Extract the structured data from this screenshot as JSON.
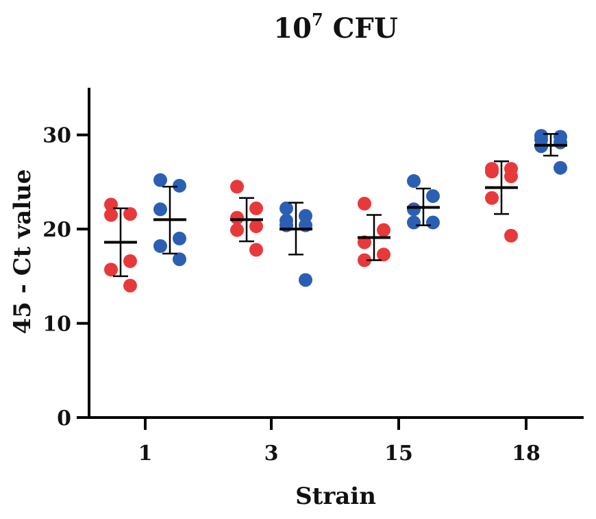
{
  "chart_data": {
    "type": "scatter",
    "title": {
      "base": "10",
      "superscript": "7",
      "suffix": " CFU"
    },
    "xlabel": "Strain",
    "ylabel": "45 - Ct value",
    "ylim": [
      0,
      35
    ],
    "yticks": [
      0,
      10,
      20,
      30
    ],
    "categories": [
      "1",
      "3",
      "15",
      "18"
    ],
    "grid": false,
    "legend": "none",
    "colors": {
      "red": "#e8393a",
      "blue": "#2b5fb3",
      "axis": "#000000",
      "summary": "#000000"
    },
    "series": [
      {
        "name": "red",
        "color": "#e8393a",
        "groups": [
          {
            "category": "1",
            "points": [
              22.6,
              21.6,
              21.5,
              16.6,
              15.7,
              14.0
            ],
            "mean": 18.6,
            "sd_low": 15.0,
            "sd_high": 22.2
          },
          {
            "category": "3",
            "points": [
              24.5,
              22.2,
              21.2,
              20.3,
              19.9,
              17.8
            ],
            "mean": 21.0,
            "sd_low": 18.7,
            "sd_high": 23.3
          },
          {
            "category": "15",
            "points": [
              22.7,
              19.9,
              18.6,
              17.3,
              16.7
            ],
            "mean": 19.1,
            "sd_low": 16.7,
            "sd_high": 21.5
          },
          {
            "category": "18",
            "points": [
              26.4,
              26.4,
              26.1,
              25.6,
              23.3,
              19.3
            ],
            "mean": 24.4,
            "sd_low": 21.6,
            "sd_high": 27.2
          }
        ]
      },
      {
        "name": "blue",
        "color": "#2b5fb3",
        "groups": [
          {
            "category": "1",
            "points": [
              25.2,
              24.6,
              22.1,
              19.0,
              18.2,
              16.8
            ],
            "mean": 21.0,
            "sd_low": 17.4,
            "sd_high": 24.5
          },
          {
            "category": "3",
            "points": [
              22.2,
              21.4,
              20.9,
              20.4,
              20.4,
              14.6
            ],
            "mean": 20.0,
            "sd_low": 17.3,
            "sd_high": 22.8
          },
          {
            "category": "15",
            "points": [
              25.1,
              23.5,
              22.1,
              20.7,
              20.7
            ],
            "mean": 22.3,
            "sd_low": 20.4,
            "sd_high": 24.3
          },
          {
            "category": "18",
            "points": [
              29.9,
              29.8,
              29.5,
              29.2,
              28.8,
              26.5
            ],
            "mean": 28.9,
            "sd_low": 27.8,
            "sd_high": 30.1
          }
        ]
      }
    ]
  }
}
